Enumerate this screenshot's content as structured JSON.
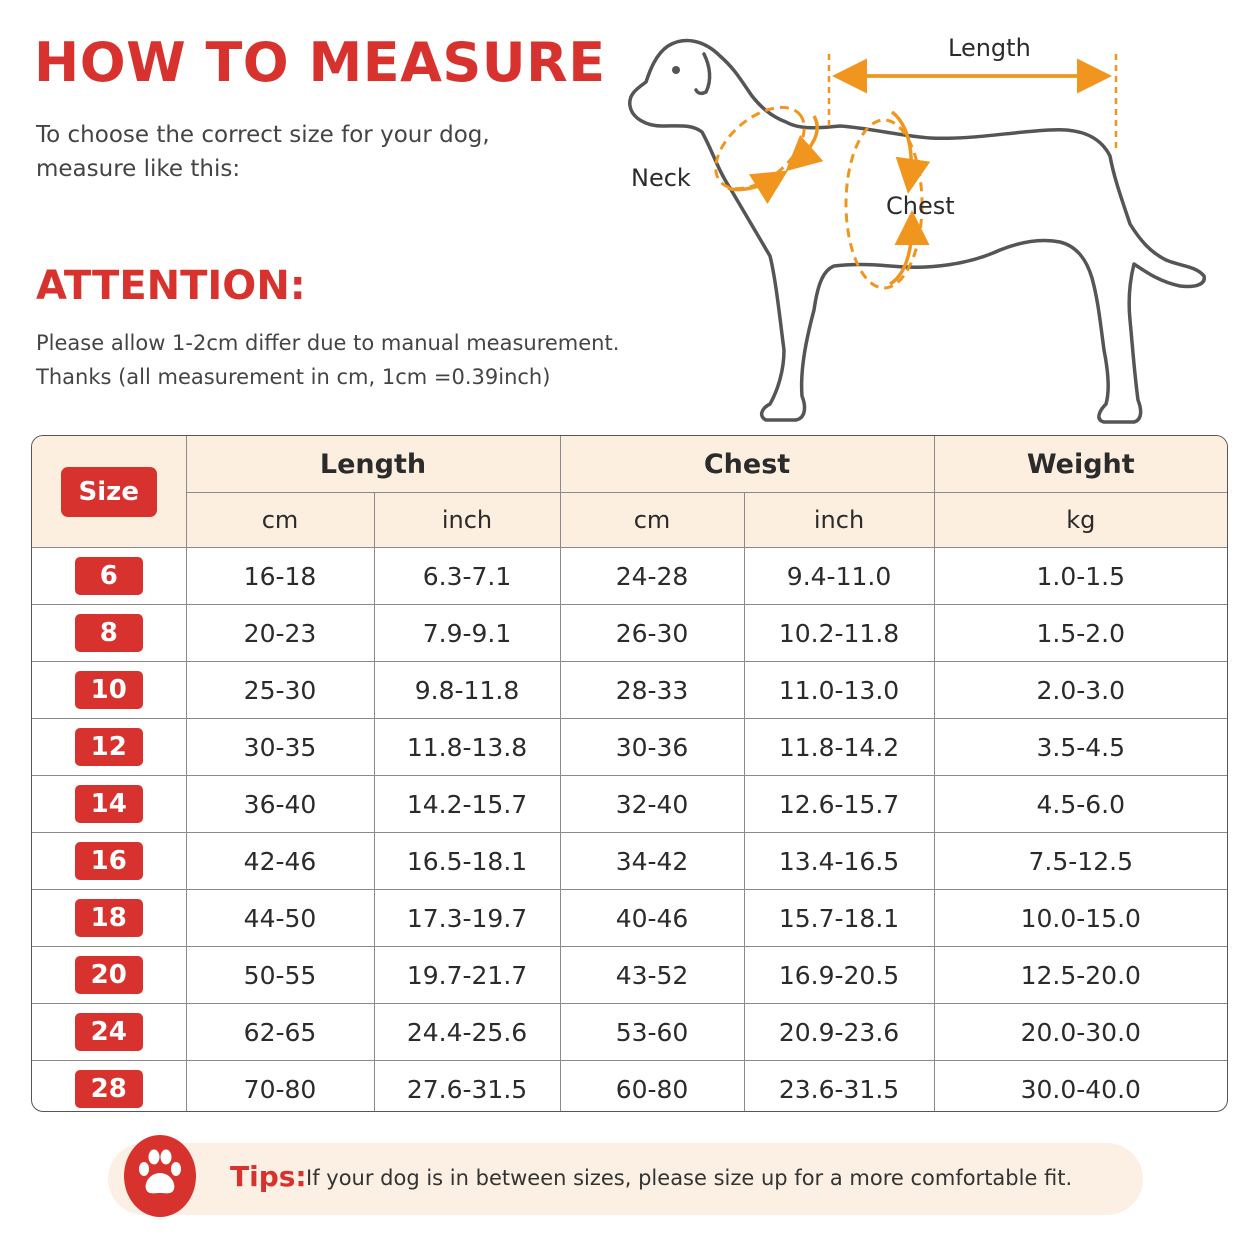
{
  "header": {
    "title": "HOW TO MEASURE",
    "subtitle_line1": "To choose the correct size for your dog,",
    "subtitle_line2": "measure like this:"
  },
  "attention": {
    "title": "ATTENTION:",
    "line1": "Please allow 1-2cm differ due to manual measurement.",
    "line2": "Thanks (all measurement in cm, 1cm =0.39inch)"
  },
  "diagram": {
    "length_label": "Length",
    "neck_label": "Neck",
    "chest_label": "Chest",
    "accent_color": "#f0961e",
    "outline_color": "#555555"
  },
  "table": {
    "size_header": "Size",
    "groups": [
      "Length",
      "Chest",
      "Weight"
    ],
    "units": [
      "cm",
      "inch",
      "cm",
      "inch",
      "kg"
    ],
    "rows": [
      {
        "size": "6",
        "length_cm": "16-18",
        "length_inch": "6.3-7.1",
        "chest_cm": "24-28",
        "chest_inch": "9.4-11.0",
        "weight_kg": "1.0-1.5"
      },
      {
        "size": "8",
        "length_cm": "20-23",
        "length_inch": "7.9-9.1",
        "chest_cm": "26-30",
        "chest_inch": "10.2-11.8",
        "weight_kg": "1.5-2.0"
      },
      {
        "size": "10",
        "length_cm": "25-30",
        "length_inch": "9.8-11.8",
        "chest_cm": "28-33",
        "chest_inch": "11.0-13.0",
        "weight_kg": "2.0-3.0"
      },
      {
        "size": "12",
        "length_cm": "30-35",
        "length_inch": "11.8-13.8",
        "chest_cm": "30-36",
        "chest_inch": "11.8-14.2",
        "weight_kg": "3.5-4.5"
      },
      {
        "size": "14",
        "length_cm": "36-40",
        "length_inch": "14.2-15.7",
        "chest_cm": "32-40",
        "chest_inch": "12.6-15.7",
        "weight_kg": "4.5-6.0"
      },
      {
        "size": "16",
        "length_cm": "42-46",
        "length_inch": "16.5-18.1",
        "chest_cm": "34-42",
        "chest_inch": "13.4-16.5",
        "weight_kg": "7.5-12.5"
      },
      {
        "size": "18",
        "length_cm": "44-50",
        "length_inch": "17.3-19.7",
        "chest_cm": "40-46",
        "chest_inch": "15.7-18.1",
        "weight_kg": "10.0-15.0"
      },
      {
        "size": "20",
        "length_cm": "50-55",
        "length_inch": "19.7-21.7",
        "chest_cm": "43-52",
        "chest_inch": "16.9-20.5",
        "weight_kg": "12.5-20.0"
      },
      {
        "size": "24",
        "length_cm": "62-65",
        "length_inch": "24.4-25.6",
        "chest_cm": "53-60",
        "chest_inch": "20.9-23.6",
        "weight_kg": "20.0-30.0"
      },
      {
        "size": "28",
        "length_cm": "70-80",
        "length_inch": "27.6-31.5",
        "chest_cm": "60-80",
        "chest_inch": "23.6-31.5",
        "weight_kg": "30.0-40.0"
      }
    ]
  },
  "tips": {
    "icon": "paw-icon",
    "label": "Tips:",
    "text": "If your dog is in between sizes, please size up for a more comfortable fit."
  },
  "colors": {
    "brand_red": "#d8322e",
    "header_bg": "#fcefe0",
    "tips_bg": "#fbf0e3"
  }
}
